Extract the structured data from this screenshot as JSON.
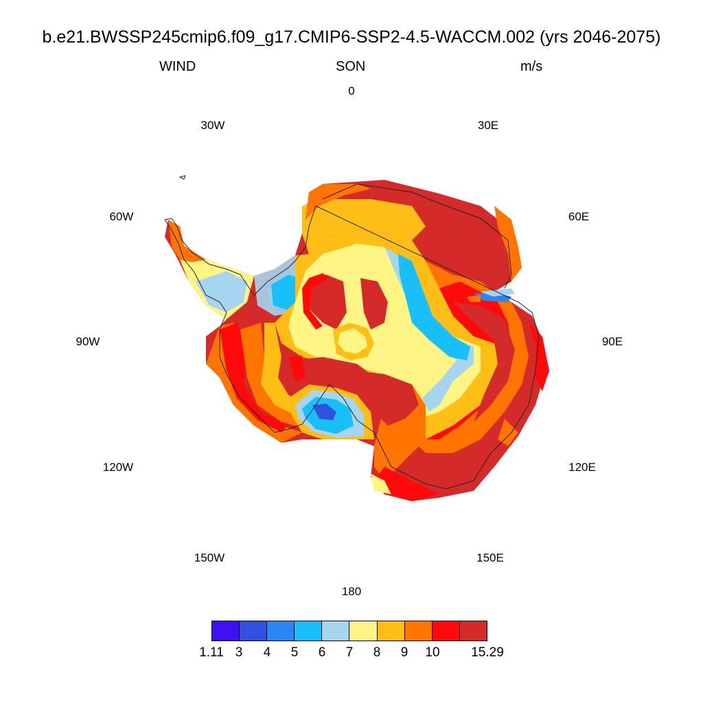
{
  "title": "b.e21.BWSSP245cmip6.f09_g17.CMIP6-SSP2-4.5-WACCM.002 (yrs 2046-2075)",
  "subtitle_left": "WIND",
  "subtitle_center": "SON",
  "subtitle_right": "m/s",
  "longitude_labels": [
    "0",
    "30E",
    "60E",
    "90E",
    "120E",
    "150E",
    "180",
    "150W",
    "120W",
    "90W",
    "60W",
    "30W"
  ],
  "colorbar": {
    "colors": [
      "#4010f5",
      "#3050e0",
      "#2a85f5",
      "#18bff8",
      "#a5d5ef",
      "#fff585",
      "#ffbe15",
      "#ff7500",
      "#ff0a0a",
      "#d42a2a"
    ],
    "labels": [
      "1.11",
      "3",
      "4",
      "5",
      "6",
      "7",
      "8",
      "9",
      "10",
      "15.29"
    ]
  },
  "chart_data": {
    "type": "heatmap",
    "projection": "south polar stereographic",
    "variable": "WIND",
    "season": "SON",
    "units": "m/s",
    "levels": [
      1.11,
      3,
      4,
      5,
      6,
      7,
      8,
      9,
      10,
      15.29
    ]
  }
}
